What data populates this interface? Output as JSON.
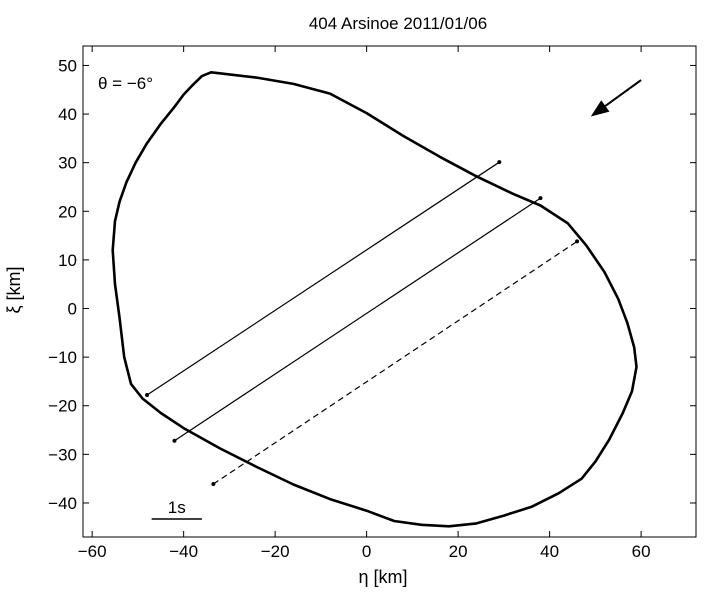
{
  "chart_data": {
    "type": "line",
    "title": "404 Arsinoe   2011/01/06",
    "xlabel": "η [km]",
    "ylabel": "ξ [km]",
    "xlim": [
      -62,
      72
    ],
    "ylim": [
      -47,
      54
    ],
    "xticks": [
      -60,
      -40,
      -20,
      0,
      20,
      40,
      60
    ],
    "yticks": [
      -40,
      -30,
      -20,
      -10,
      0,
      10,
      20,
      30,
      40,
      50
    ],
    "annotation": "θ = −6°",
    "scale_bar": {
      "label": "1s",
      "x1": -47,
      "x2": -36,
      "y": -43.3
    },
    "arrow": {
      "from": [
        60,
        47
      ],
      "to": [
        49,
        39.5
      ]
    },
    "outline": [
      [
        -34,
        48.6
      ],
      [
        -24,
        47.5
      ],
      [
        -16,
        46.2
      ],
      [
        -8,
        44.2
      ],
      [
        0,
        40.2
      ],
      [
        8,
        35.5
      ],
      [
        16,
        31.2
      ],
      [
        24,
        27.2
      ],
      [
        32,
        23.6
      ],
      [
        38,
        21.2
      ],
      [
        44,
        17.5
      ],
      [
        48,
        13.0
      ],
      [
        52,
        7.5
      ],
      [
        55,
        2.0
      ],
      [
        57,
        -3.0
      ],
      [
        58.5,
        -8.0
      ],
      [
        59,
        -12.0
      ],
      [
        58,
        -17.0
      ],
      [
        56,
        -21.5
      ],
      [
        53,
        -27.0
      ],
      [
        50,
        -31.5
      ],
      [
        47,
        -35.0
      ],
      [
        42,
        -38.0
      ],
      [
        36,
        -40.8
      ],
      [
        30,
        -42.6
      ],
      [
        24,
        -44.2
      ],
      [
        18,
        -44.8
      ],
      [
        12,
        -44.5
      ],
      [
        6,
        -43.7
      ],
      [
        0,
        -41.6
      ],
      [
        -8,
        -39.2
      ],
      [
        -16,
        -36.2
      ],
      [
        -24,
        -32.6
      ],
      [
        -32,
        -28.8
      ],
      [
        -40,
        -24.6
      ],
      [
        -45,
        -21.5
      ],
      [
        -49,
        -18.5
      ],
      [
        -51.5,
        -15.5
      ],
      [
        -53,
        -10.0
      ],
      [
        -54,
        -2.0
      ],
      [
        -55,
        5.0
      ],
      [
        -55.5,
        12.0
      ],
      [
        -55,
        18.0
      ],
      [
        -54,
        22.0
      ],
      [
        -52.5,
        26.0
      ],
      [
        -50.5,
        30.0
      ],
      [
        -48,
        34.0
      ],
      [
        -45,
        38.0
      ],
      [
        -42,
        41.5
      ],
      [
        -40,
        44.0
      ],
      [
        -38,
        46.0
      ],
      [
        -36,
        47.8
      ]
    ],
    "chords": [
      {
        "style": "solid",
        "start": [
          -48,
          -17.8
        ],
        "end": [
          29,
          30.1
        ]
      },
      {
        "style": "solid",
        "start": [
          -42,
          -27.2
        ],
        "end": [
          38,
          22.7
        ]
      },
      {
        "style": "dashed",
        "start": [
          -33.5,
          -36.1
        ],
        "end": [
          46,
          13.8
        ]
      }
    ]
  }
}
